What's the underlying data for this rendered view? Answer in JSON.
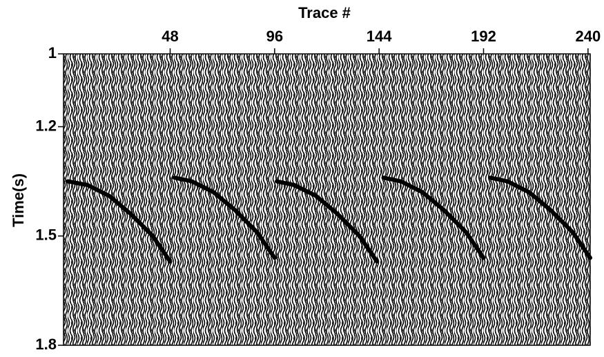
{
  "chart_data": {
    "type": "line",
    "xlabel": "Trace #",
    "ylabel": "Time(s)",
    "xlim": [
      -1,
      241
    ],
    "xticks": [
      48,
      96,
      144,
      192,
      240
    ],
    "ylim": [
      1.0,
      1.8
    ],
    "yticks": [
      1.0,
      1.2,
      1.5,
      1.8
    ],
    "y_inverted": true,
    "x_axis_position": "top",
    "color": "#000000",
    "series": [
      {
        "x": [
          1,
          10,
          20,
          30,
          40,
          48
        ],
        "values": [
          1.35,
          1.36,
          1.39,
          1.44,
          1.5,
          1.57
        ]
      },
      {
        "x": [
          50,
          58,
          68,
          78,
          88,
          96
        ],
        "values": [
          1.34,
          1.35,
          1.38,
          1.43,
          1.49,
          1.56
        ]
      },
      {
        "x": [
          97,
          105,
          115,
          125,
          135,
          143
        ],
        "values": [
          1.35,
          1.36,
          1.39,
          1.44,
          1.5,
          1.57
        ]
      },
      {
        "x": [
          146,
          154,
          164,
          174,
          184,
          192
        ],
        "values": [
          1.34,
          1.35,
          1.38,
          1.43,
          1.49,
          1.56
        ]
      },
      {
        "x": [
          195,
          203,
          213,
          223,
          233,
          241
        ],
        "values": [
          1.34,
          1.35,
          1.38,
          1.43,
          1.49,
          1.56
        ]
      }
    ]
  }
}
